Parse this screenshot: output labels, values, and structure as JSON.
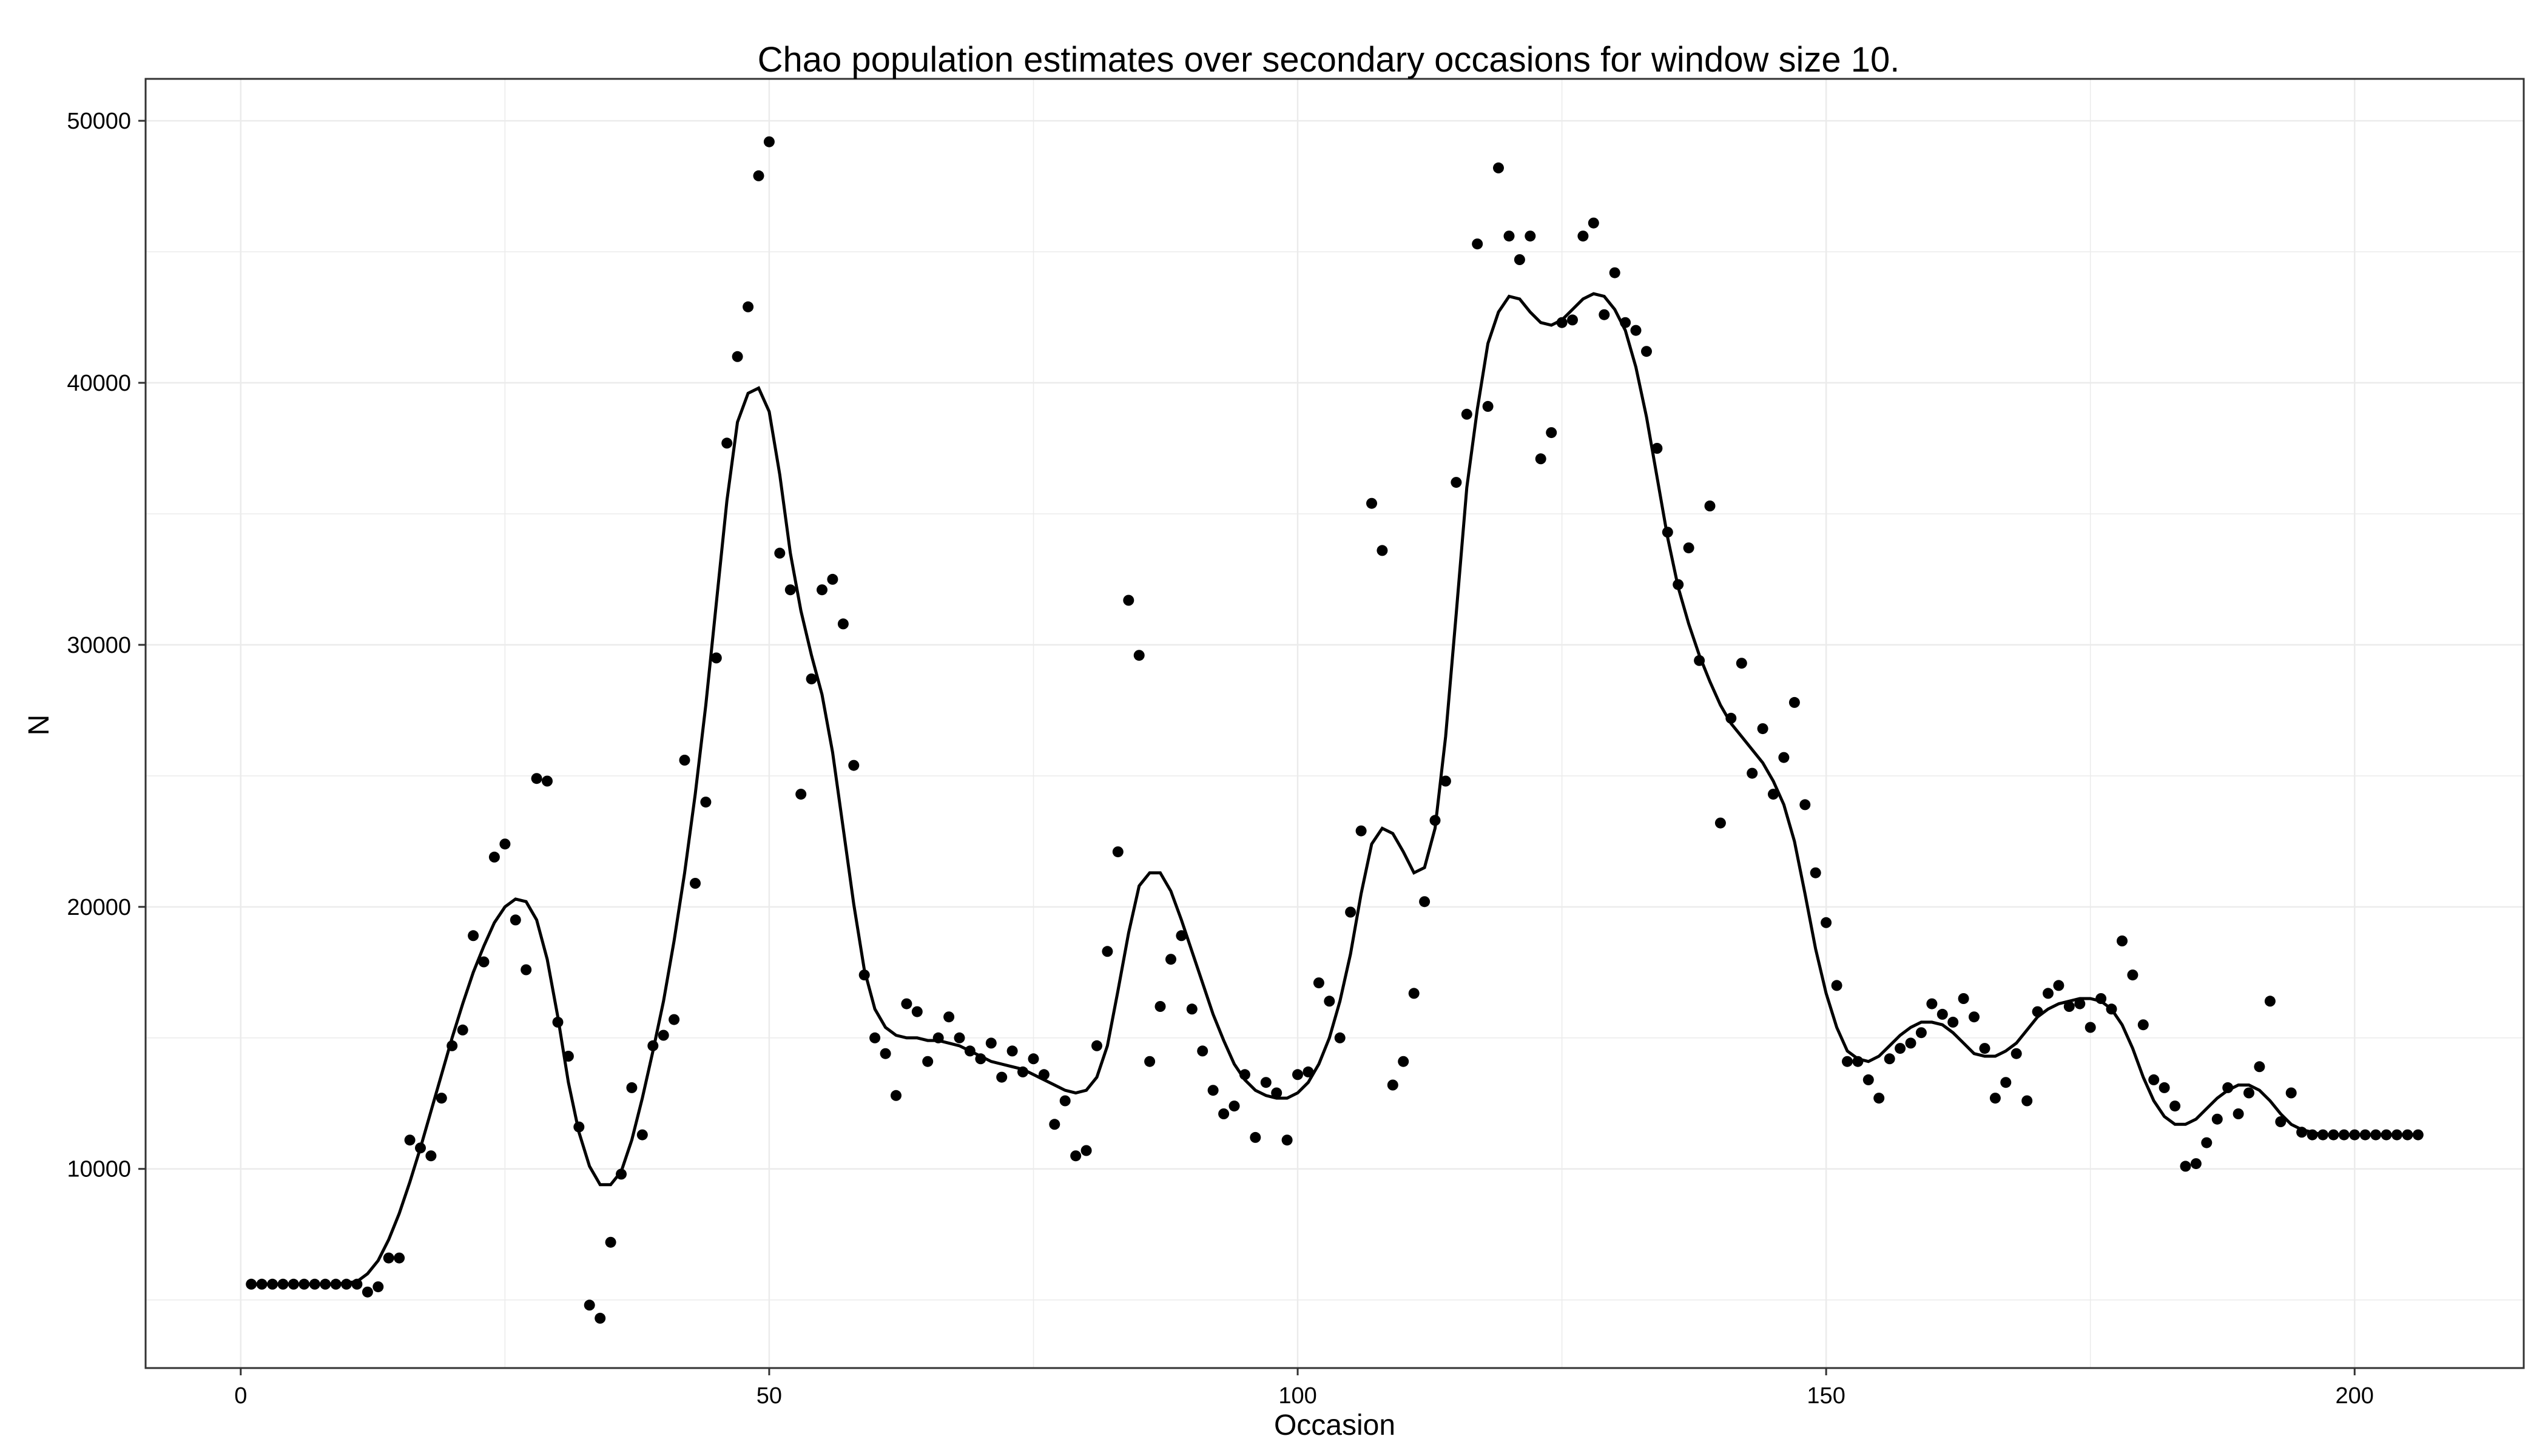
{
  "chart_data": {
    "type": "scatter",
    "title": "Chao population estimates over secondary occasions for window size 10.",
    "xlabel": "Occasion",
    "ylabel": "N",
    "xlim": [
      -9,
      216
    ],
    "ylim": [
      2400,
      51600
    ],
    "x_ticks": [
      0,
      50,
      100,
      150,
      200
    ],
    "x_tick_labels": [
      "0",
      "50",
      "100",
      "150",
      "200"
    ],
    "y_ticks": [
      10000,
      20000,
      30000,
      40000,
      50000
    ],
    "y_tick_labels": [
      "10000",
      "20000",
      "30000",
      "40000",
      "50000"
    ],
    "grid": true,
    "legend": "none",
    "colors": {
      "points": "#000000",
      "line": "#000000",
      "grid": "#ebebeb",
      "panel_border": "#333333",
      "background": "#ffffff"
    },
    "series": [
      {
        "kind": "points",
        "x": [
          1,
          2,
          3,
          4,
          5,
          6,
          7,
          8,
          9,
          10,
          11,
          12,
          13,
          14,
          15,
          16,
          17,
          18,
          19,
          20,
          21,
          22,
          23,
          24,
          25,
          26,
          27,
          28,
          29,
          30,
          31,
          32,
          33,
          34,
          35,
          36,
          37,
          38,
          39,
          40,
          41,
          42,
          43,
          44,
          45,
          46,
          47,
          48,
          49,
          50,
          51,
          52,
          53,
          54,
          55,
          56,
          57,
          58,
          59,
          60,
          61,
          62,
          63,
          64,
          65,
          66,
          67,
          68,
          69,
          70,
          71,
          72,
          73,
          74,
          75,
          76,
          77,
          78,
          79,
          80,
          81,
          82,
          83,
          84,
          85,
          86,
          87,
          88,
          89,
          90,
          91,
          92,
          93,
          94,
          95,
          96,
          97,
          98,
          99,
          100,
          101,
          102,
          103,
          104,
          105,
          106,
          107,
          108,
          109,
          110,
          111,
          112,
          113,
          114,
          115,
          116,
          117,
          118,
          119,
          120,
          121,
          122,
          123,
          124,
          125,
          126,
          127,
          128,
          129,
          130,
          131,
          132,
          133,
          134,
          135,
          136,
          137,
          138,
          139,
          140,
          141,
          142,
          143,
          144,
          145,
          146,
          147,
          148,
          149,
          150,
          151,
          152,
          153,
          154,
          155,
          156,
          157,
          158,
          159,
          160,
          161,
          162,
          163,
          164,
          165,
          166,
          167,
          168,
          169,
          170,
          171,
          172,
          173,
          174,
          175,
          176,
          177,
          178,
          179,
          180,
          181,
          182,
          183,
          184,
          185,
          186,
          187,
          188,
          189,
          190,
          191,
          192,
          193,
          194,
          195,
          196,
          197,
          198,
          199,
          200,
          201,
          202,
          203,
          204,
          205,
          206
        ],
        "y": [
          5600,
          5600,
          5600,
          5600,
          5600,
          5600,
          5600,
          5600,
          5600,
          5600,
          5600,
          5300,
          5500,
          6600,
          6600,
          11100,
          10800,
          10500,
          12700,
          14700,
          15300,
          18900,
          17900,
          21900,
          22400,
          19500,
          17600,
          24900,
          24800,
          15600,
          14300,
          11600,
          4800,
          4300,
          7200,
          9800,
          13100,
          11300,
          14700,
          15100,
          15700,
          25600,
          20900,
          24000,
          29500,
          37700,
          41000,
          42900,
          47900,
          49200,
          33500,
          32100,
          24300,
          28700,
          32100,
          32500,
          30800,
          25400,
          17400,
          15000,
          14400,
          12800,
          16300,
          16000,
          14100,
          15000,
          15800,
          15000,
          14500,
          14200,
          14800,
          13500,
          14500,
          13700,
          14200,
          13600,
          11700,
          12600,
          10500,
          10700,
          14700,
          18300,
          22100,
          31700,
          29600,
          14100,
          16200,
          18000,
          18900,
          16100,
          14500,
          13000,
          12100,
          12400,
          13600,
          11200,
          13300,
          12900,
          11100,
          13600,
          13700,
          17100,
          16400,
          15000,
          19800,
          22900,
          35400,
          33600,
          13200,
          14100,
          16700,
          20200,
          23300,
          24800,
          36200,
          38800,
          45300,
          39100,
          48200,
          45600,
          44700,
          45600,
          37100,
          38100,
          42300,
          42400,
          45600,
          46100,
          42600,
          44200,
          42300,
          42000,
          41200,
          37500,
          34300,
          32300,
          33700,
          29400,
          35300,
          23200,
          27200,
          29300,
          25100,
          26800,
          24300,
          25700,
          27800,
          23900,
          21300,
          19400,
          17000,
          14100,
          14100,
          13400,
          12700,
          14200,
          14600,
          14800,
          15200,
          16300,
          15900,
          15600,
          16500,
          15800,
          14600,
          12700,
          13300,
          14400,
          12600,
          16000,
          16700,
          17000,
          16200,
          16300,
          15400,
          16500,
          16100,
          18700,
          17400,
          15500,
          13400,
          13100,
          12400,
          10100,
          10200,
          11000,
          11900,
          13100,
          12100,
          12900,
          13900,
          16400,
          11800,
          12900,
          11400,
          11300,
          11300,
          11300,
          11300,
          11300,
          11300,
          11300,
          11300,
          11300,
          11300,
          11300
        ]
      },
      {
        "kind": "smoothed-line",
        "x": [
          1,
          2,
          3,
          4,
          5,
          6,
          7,
          8,
          9,
          10,
          11,
          12,
          13,
          14,
          15,
          16,
          17,
          18,
          19,
          20,
          21,
          22,
          23,
          24,
          25,
          26,
          27,
          28,
          29,
          30,
          31,
          32,
          33,
          34,
          35,
          36,
          37,
          38,
          39,
          40,
          41,
          42,
          43,
          44,
          45,
          46,
          47,
          48,
          49,
          50,
          51,
          52,
          53,
          54,
          55,
          56,
          57,
          58,
          59,
          60,
          61,
          62,
          63,
          64,
          65,
          66,
          67,
          68,
          69,
          70,
          71,
          72,
          73,
          74,
          75,
          76,
          77,
          78,
          79,
          80,
          81,
          82,
          83,
          84,
          85,
          86,
          87,
          88,
          89,
          90,
          91,
          92,
          93,
          94,
          95,
          96,
          97,
          98,
          99,
          100,
          101,
          102,
          103,
          104,
          105,
          106,
          107,
          108,
          109,
          110,
          111,
          112,
          113,
          114,
          115,
          116,
          117,
          118,
          119,
          120,
          121,
          122,
          123,
          124,
          125,
          126,
          127,
          128,
          129,
          130,
          131,
          132,
          133,
          134,
          135,
          136,
          137,
          138,
          139,
          140,
          141,
          142,
          143,
          144,
          145,
          146,
          147,
          148,
          149,
          150,
          151,
          152,
          153,
          154,
          155,
          156,
          157,
          158,
          159,
          160,
          161,
          162,
          163,
          164,
          165,
          166,
          167,
          168,
          169,
          170,
          171,
          172,
          173,
          174,
          175,
          176,
          177,
          178,
          179,
          180,
          181,
          182,
          183,
          184,
          185,
          186,
          187,
          188,
          189,
          190,
          191,
          192,
          193,
          194,
          195,
          196,
          197,
          198,
          199,
          200,
          201,
          202,
          203,
          204,
          205,
          206
        ],
        "y": [
          5600,
          5600,
          5600,
          5600,
          5600,
          5600,
          5600,
          5600,
          5600,
          5650,
          5700,
          6000,
          6500,
          7300,
          8300,
          9500,
          10800,
          12200,
          13600,
          15000,
          16300,
          17500,
          18500,
          19400,
          20000,
          20300,
          20200,
          19500,
          18000,
          15800,
          13300,
          11400,
          10100,
          9400,
          9400,
          9900,
          11100,
          12700,
          14500,
          16400,
          18700,
          21300,
          24300,
          27700,
          31600,
          35500,
          38500,
          39600,
          39800,
          38900,
          36500,
          33500,
          31300,
          29600,
          28100,
          25900,
          23000,
          20100,
          17600,
          16100,
          15400,
          15100,
          15000,
          15000,
          14900,
          14900,
          14800,
          14700,
          14500,
          14300,
          14100,
          14000,
          13900,
          13800,
          13600,
          13400,
          13200,
          13000,
          12900,
          13000,
          13500,
          14700,
          16800,
          19000,
          20800,
          21300,
          21300,
          20600,
          19500,
          18300,
          17100,
          15900,
          14900,
          14000,
          13400,
          13000,
          12800,
          12700,
          12700,
          12900,
          13300,
          14000,
          15000,
          16400,
          18200,
          20500,
          22400,
          23000,
          22800,
          22100,
          21300,
          21500,
          23000,
          26500,
          31200,
          36000,
          39000,
          41500,
          42700,
          43300,
          43200,
          42700,
          42300,
          42200,
          42400,
          42800,
          43200,
          43400,
          43300,
          42800,
          42000,
          40600,
          38700,
          36400,
          34100,
          32200,
          30800,
          29600,
          28600,
          27700,
          27000,
          26500,
          26000,
          25500,
          24800,
          23900,
          22500,
          20500,
          18400,
          16700,
          15400,
          14500,
          14200,
          14100,
          14300,
          14700,
          15100,
          15400,
          15600,
          15600,
          15500,
          15200,
          14800,
          14400,
          14300,
          14300,
          14500,
          14800,
          15300,
          15800,
          16100,
          16300,
          16400,
          16500,
          16500,
          16400,
          16100,
          15500,
          14600,
          13500,
          12600,
          12000,
          11700,
          11700,
          11900,
          12300,
          12700,
          13000,
          13200,
          13200,
          13000,
          12600,
          12100,
          11700,
          11500,
          11400,
          11300,
          11300,
          11300,
          11300,
          11300,
          11300,
          11300,
          11300,
          11300,
          11300
        ]
      }
    ]
  }
}
